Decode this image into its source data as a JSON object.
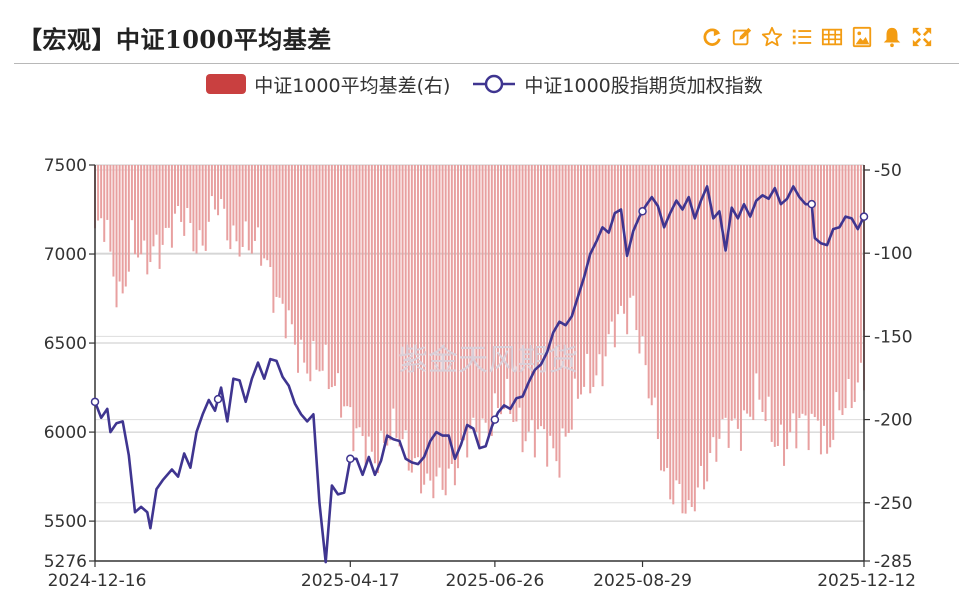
{
  "header": {
    "title": "【宏观】中证1000平均基差",
    "tools": [
      {
        "name": "refresh-icon",
        "color": "#f39c12"
      },
      {
        "name": "edit-icon",
        "color": "#f39c12"
      },
      {
        "name": "star-icon",
        "color": "#f39c12"
      },
      {
        "name": "list-icon",
        "color": "#f39c12"
      },
      {
        "name": "table-icon",
        "color": "#f39c12"
      },
      {
        "name": "image-icon",
        "color": "#f39c12"
      },
      {
        "name": "bell-icon",
        "color": "#f39c12"
      },
      {
        "name": "fullscreen-icon",
        "color": "#f39c12"
      }
    ]
  },
  "watermark": "紫金天风期货",
  "colors": {
    "bar": "#e8a0a0",
    "bar_legend": "#c94040",
    "line": "#3f3590",
    "accent": "#f39c12"
  },
  "chart_data": {
    "type": "bar+line",
    "x_ticks": [
      "2024-12-16",
      "2025-04-17",
      "2025-06-26",
      "2025-08-29",
      "2025-12-12"
    ],
    "x_tick_index": [
      0,
      83,
      130,
      178,
      250
    ],
    "y_left": {
      "ticks": [
        5276,
        5500,
        6000,
        6500,
        7000,
        7500
      ],
      "range": [
        5276,
        7500
      ]
    },
    "y_right": {
      "ticks": [
        -50,
        -100,
        -150,
        -200,
        -250,
        -285
      ],
      "range": [
        -285,
        -47
      ]
    },
    "legend_position": "top-center",
    "series": [
      {
        "name": "中证1000平均基差(右)",
        "type": "bar",
        "axis": "right",
        "keypoints": [
          [
            0,
            -90
          ],
          [
            3,
            -85
          ],
          [
            5,
            -105
          ],
          [
            8,
            -125
          ],
          [
            12,
            -95
          ],
          [
            16,
            -110
          ],
          [
            20,
            -92
          ],
          [
            25,
            -88
          ],
          [
            30,
            -80
          ],
          [
            35,
            -95
          ],
          [
            40,
            -72
          ],
          [
            45,
            -88
          ],
          [
            50,
            -100
          ],
          [
            55,
            -95
          ],
          [
            60,
            -135
          ],
          [
            65,
            -155
          ],
          [
            70,
            -165
          ],
          [
            75,
            -175
          ],
          [
            80,
            -180
          ],
          [
            83,
            -200
          ],
          [
            85,
            -215
          ],
          [
            90,
            -220
          ],
          [
            95,
            -210
          ],
          [
            100,
            -215
          ],
          [
            105,
            -225
          ],
          [
            108,
            -245
          ],
          [
            112,
            -240
          ],
          [
            115,
            -230
          ],
          [
            120,
            -220
          ],
          [
            125,
            -205
          ],
          [
            130,
            -195
          ],
          [
            135,
            -195
          ],
          [
            140,
            -205
          ],
          [
            145,
            -215
          ],
          [
            150,
            -220
          ],
          [
            155,
            -200
          ],
          [
            160,
            -175
          ],
          [
            165,
            -165
          ],
          [
            170,
            -145
          ],
          [
            175,
            -125
          ],
          [
            180,
            -185
          ],
          [
            185,
            -230
          ],
          [
            190,
            -245
          ],
          [
            193,
            -265
          ],
          [
            196,
            -240
          ],
          [
            200,
            -220
          ],
          [
            205,
            -210
          ],
          [
            210,
            -200
          ],
          [
            215,
            -190
          ],
          [
            220,
            -205
          ],
          [
            225,
            -215
          ],
          [
            230,
            -205
          ],
          [
            235,
            -195
          ],
          [
            238,
            -225
          ],
          [
            242,
            -195
          ],
          [
            246,
            -180
          ],
          [
            250,
            -175
          ]
        ]
      },
      {
        "name": "中证1000股指期货加权指数",
        "type": "line",
        "axis": "left",
        "keypoints": [
          [
            0,
            6170
          ],
          [
            2,
            6080
          ],
          [
            4,
            6130
          ],
          [
            5,
            6000
          ],
          [
            7,
            6050
          ],
          [
            9,
            6060
          ],
          [
            11,
            5870
          ],
          [
            13,
            5550
          ],
          [
            15,
            5580
          ],
          [
            17,
            5550
          ],
          [
            18,
            5460
          ],
          [
            20,
            5680
          ],
          [
            22,
            5730
          ],
          [
            25,
            5790
          ],
          [
            27,
            5750
          ],
          [
            29,
            5880
          ],
          [
            31,
            5800
          ],
          [
            33,
            6000
          ],
          [
            35,
            6100
          ],
          [
            37,
            6180
          ],
          [
            39,
            6120
          ],
          [
            41,
            6250
          ],
          [
            43,
            6060
          ],
          [
            45,
            6300
          ],
          [
            47,
            6290
          ],
          [
            49,
            6170
          ],
          [
            51,
            6300
          ],
          [
            53,
            6390
          ],
          [
            55,
            6300
          ],
          [
            57,
            6410
          ],
          [
            59,
            6400
          ],
          [
            61,
            6310
          ],
          [
            63,
            6260
          ],
          [
            65,
            6160
          ],
          [
            67,
            6100
          ],
          [
            69,
            6060
          ],
          [
            71,
            6100
          ],
          [
            73,
            5600
          ],
          [
            75,
            5270
          ],
          [
            77,
            5700
          ],
          [
            79,
            5650
          ],
          [
            81,
            5660
          ],
          [
            83,
            5850
          ],
          [
            85,
            5850
          ],
          [
            87,
            5760
          ],
          [
            89,
            5860
          ],
          [
            91,
            5760
          ],
          [
            93,
            5840
          ],
          [
            95,
            5980
          ],
          [
            97,
            5960
          ],
          [
            99,
            5950
          ],
          [
            101,
            5850
          ],
          [
            103,
            5830
          ],
          [
            105,
            5820
          ],
          [
            107,
            5860
          ],
          [
            109,
            5950
          ],
          [
            111,
            6000
          ],
          [
            113,
            5980
          ],
          [
            115,
            5980
          ],
          [
            117,
            5850
          ],
          [
            119,
            5930
          ],
          [
            121,
            6040
          ],
          [
            123,
            6020
          ],
          [
            125,
            5910
          ],
          [
            127,
            5920
          ],
          [
            129,
            6030
          ],
          [
            131,
            6110
          ],
          [
            133,
            6150
          ],
          [
            135,
            6130
          ],
          [
            137,
            6190
          ],
          [
            139,
            6200
          ],
          [
            141,
            6280
          ],
          [
            143,
            6350
          ],
          [
            145,
            6380
          ],
          [
            147,
            6450
          ],
          [
            149,
            6560
          ],
          [
            151,
            6620
          ],
          [
            153,
            6600
          ],
          [
            155,
            6650
          ],
          [
            157,
            6760
          ],
          [
            159,
            6870
          ],
          [
            161,
            7000
          ],
          [
            163,
            7070
          ],
          [
            165,
            7150
          ],
          [
            167,
            7120
          ],
          [
            169,
            7230
          ],
          [
            171,
            7250
          ],
          [
            173,
            6990
          ],
          [
            175,
            7130
          ],
          [
            177,
            7210
          ],
          [
            179,
            7270
          ],
          [
            181,
            7320
          ],
          [
            183,
            7270
          ],
          [
            185,
            7150
          ],
          [
            187,
            7230
          ],
          [
            189,
            7300
          ],
          [
            191,
            7250
          ],
          [
            193,
            7320
          ],
          [
            195,
            7200
          ],
          [
            197,
            7300
          ],
          [
            199,
            7380
          ],
          [
            201,
            7200
          ],
          [
            203,
            7240
          ],
          [
            205,
            7020
          ],
          [
            207,
            7260
          ],
          [
            209,
            7200
          ],
          [
            211,
            7280
          ],
          [
            213,
            7210
          ],
          [
            215,
            7300
          ],
          [
            217,
            7330
          ],
          [
            219,
            7310
          ],
          [
            221,
            7370
          ],
          [
            223,
            7280
          ],
          [
            225,
            7310
          ],
          [
            227,
            7380
          ],
          [
            229,
            7320
          ],
          [
            231,
            7280
          ],
          [
            233,
            7280
          ],
          [
            234,
            7090
          ],
          [
            236,
            7060
          ],
          [
            238,
            7050
          ],
          [
            240,
            7140
          ],
          [
            242,
            7150
          ],
          [
            244,
            7210
          ],
          [
            246,
            7200
          ],
          [
            248,
            7140
          ],
          [
            250,
            7210
          ]
        ]
      }
    ]
  }
}
